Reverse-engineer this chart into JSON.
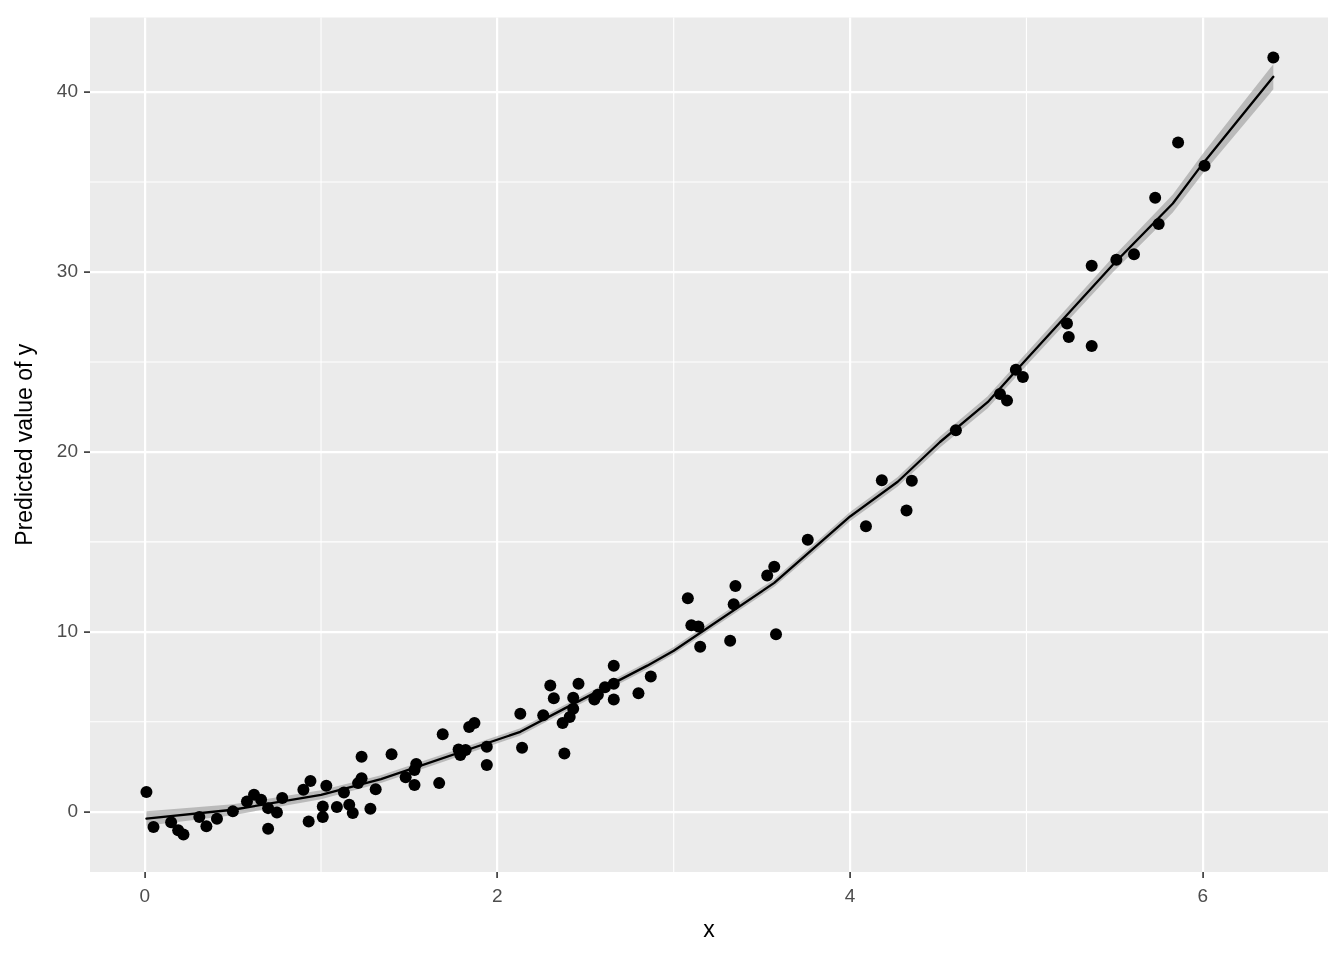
{
  "chart_data": {
    "type": "scatter",
    "xlabel": "x",
    "ylabel": "Predicted value of y",
    "xlim": [
      -0.31,
      6.71
    ],
    "ylim": [
      -3.35,
      44.15
    ],
    "xticks": [
      0,
      2,
      4,
      6
    ],
    "yticks": [
      0,
      10,
      20,
      30,
      40
    ],
    "grid": true,
    "marker": "circle",
    "series": [
      {
        "type": "scatter",
        "color": "#000000",
        "x": [
          0.01,
          0.05,
          0.15,
          0.19,
          0.22,
          0.31,
          0.35,
          0.41,
          0.5,
          0.58,
          0.62,
          0.66,
          0.7,
          0.7,
          0.75,
          0.78,
          0.9,
          0.93,
          0.94,
          1.01,
          1.01,
          1.03,
          1.09,
          1.13,
          1.16,
          1.18,
          1.21,
          1.23,
          1.23,
          1.28,
          1.31,
          1.4,
          1.48,
          1.53,
          1.53,
          1.54,
          1.67,
          1.69,
          1.78,
          1.79,
          1.82,
          1.84,
          1.87,
          1.94,
          1.94,
          2.13,
          2.14,
          2.26,
          2.3,
          2.32,
          2.37,
          2.38,
          2.41,
          2.43,
          2.43,
          2.46,
          2.55,
          2.57,
          2.61,
          2.66,
          2.66,
          2.66,
          2.8,
          2.87,
          3.08,
          3.1,
          3.14,
          3.15,
          3.32,
          3.34,
          3.35,
          3.53,
          3.57,
          3.58,
          3.76,
          4.09,
          4.18,
          4.32,
          4.35,
          4.6,
          4.85,
          4.89,
          4.94,
          4.98,
          5.23,
          5.24,
          5.37,
          5.37,
          5.51,
          5.61,
          5.73,
          5.75,
          5.86,
          6.01,
          6.4
        ],
        "values": [
          1.09,
          -0.85,
          -0.59,
          -1.03,
          -1.27,
          -0.29,
          -0.81,
          -0.39,
          0.02,
          0.57,
          0.94,
          0.66,
          -0.94,
          0.2,
          -0.04,
          0.76,
          1.22,
          -0.54,
          1.71,
          0.29,
          -0.29,
          1.45,
          0.26,
          1.07,
          0.39,
          -0.07,
          1.59,
          1.86,
          3.06,
          0.17,
          1.25,
          3.19,
          1.92,
          1.49,
          2.32,
          2.65,
          1.59,
          4.31,
          3.46,
          3.15,
          3.43,
          4.71,
          4.93,
          3.61,
          2.6,
          5.45,
          3.55,
          5.36,
          7.02,
          6.31,
          4.93,
          3.24,
          5.27,
          5.73,
          6.34,
          7.11,
          6.24,
          6.5,
          6.92,
          7.11,
          8.12,
          6.24,
          6.59,
          7.51,
          11.86,
          10.37,
          10.29,
          9.17,
          9.5,
          11.53,
          12.54,
          13.13,
          13.61,
          9.87,
          15.12,
          15.87,
          18.43,
          16.74,
          18.4,
          21.2,
          23.22,
          22.85,
          24.57,
          24.16,
          27.14,
          26.39,
          25.89,
          30.35,
          30.68,
          30.98,
          34.13,
          32.67,
          37.2,
          35.9,
          41.92
        ]
      },
      {
        "type": "line",
        "color": "#000000",
        "marker": "none",
        "x": [
          0.01,
          0.5,
          1.0,
          1.34,
          2.13,
          2.38,
          2.85,
          3.0,
          3.57,
          4.0,
          4.27,
          4.51,
          4.78,
          5.0,
          5.49,
          5.83,
          6.0,
          6.4
        ],
        "values": [
          -0.38,
          0.11,
          0.94,
          1.81,
          4.44,
          5.73,
          8.12,
          8.95,
          12.72,
          16.41,
          18.34,
          20.55,
          22.76,
          25.15,
          30.4,
          33.81,
          36.02,
          40.85
        ],
        "lower": [
          -0.78,
          -0.19,
          0.69,
          1.59,
          4.24,
          5.53,
          7.92,
          8.75,
          12.5,
          16.16,
          18.07,
          20.25,
          22.43,
          24.8,
          29.98,
          33.31,
          35.47,
          40.15
        ],
        "upper": [
          0.02,
          0.41,
          1.19,
          2.03,
          4.64,
          5.93,
          8.32,
          9.15,
          12.94,
          16.66,
          18.61,
          20.85,
          23.09,
          25.5,
          30.82,
          34.31,
          36.57,
          41.55
        ]
      }
    ]
  }
}
